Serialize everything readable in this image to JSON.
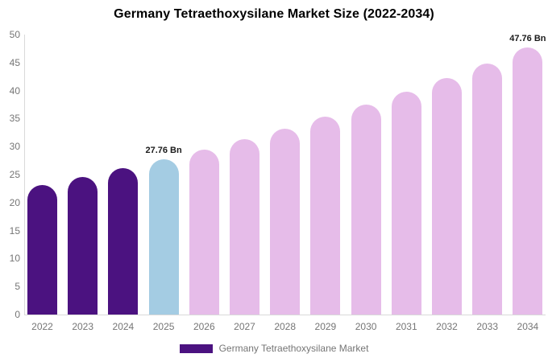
{
  "title": "Germany Tetraethoxysilane Market Size (2022-2034)",
  "colors": {
    "historical_bar": "#4B1280",
    "highlight_bar": "#A4CCE3",
    "forecast_bar": "#E6BCE9",
    "axis_line": "#D9D9D9",
    "tick_text": "#757575",
    "title_text": "#000000",
    "annotation_text": "#1A1A1A"
  },
  "legend": {
    "swatch_color": "#4B1280",
    "label": "Germany Tetraethoxysilane Market"
  },
  "chart_data": {
    "type": "bar",
    "title": "Germany Tetraethoxysilane Market Size (2022-2034)",
    "xlabel": "",
    "ylabel": "",
    "unit": "Bn",
    "categories": [
      "2022",
      "2023",
      "2024",
      "2025",
      "2026",
      "2027",
      "2028",
      "2029",
      "2030",
      "2031",
      "2032",
      "2033",
      "2034"
    ],
    "values": [
      23.2,
      24.6,
      26.1,
      27.76,
      29.4,
      31.3,
      33.2,
      35.3,
      37.5,
      39.8,
      42.3,
      44.9,
      47.76
    ],
    "bar_colors": [
      "#4B1280",
      "#4B1280",
      "#4B1280",
      "#A4CCE3",
      "#E6BCE9",
      "#E6BCE9",
      "#E6BCE9",
      "#E6BCE9",
      "#E6BCE9",
      "#E6BCE9",
      "#E6BCE9",
      "#E6BCE9",
      "#E6BCE9"
    ],
    "ylim": [
      0,
      50
    ],
    "yticks": [
      0,
      5,
      10,
      15,
      20,
      25,
      30,
      35,
      40,
      45,
      50
    ],
    "grid": false,
    "legend_position": "bottom",
    "annotations": [
      {
        "index": 3,
        "text": "27.76 Bn"
      },
      {
        "index": 12,
        "text": "47.76 Bn"
      }
    ]
  }
}
